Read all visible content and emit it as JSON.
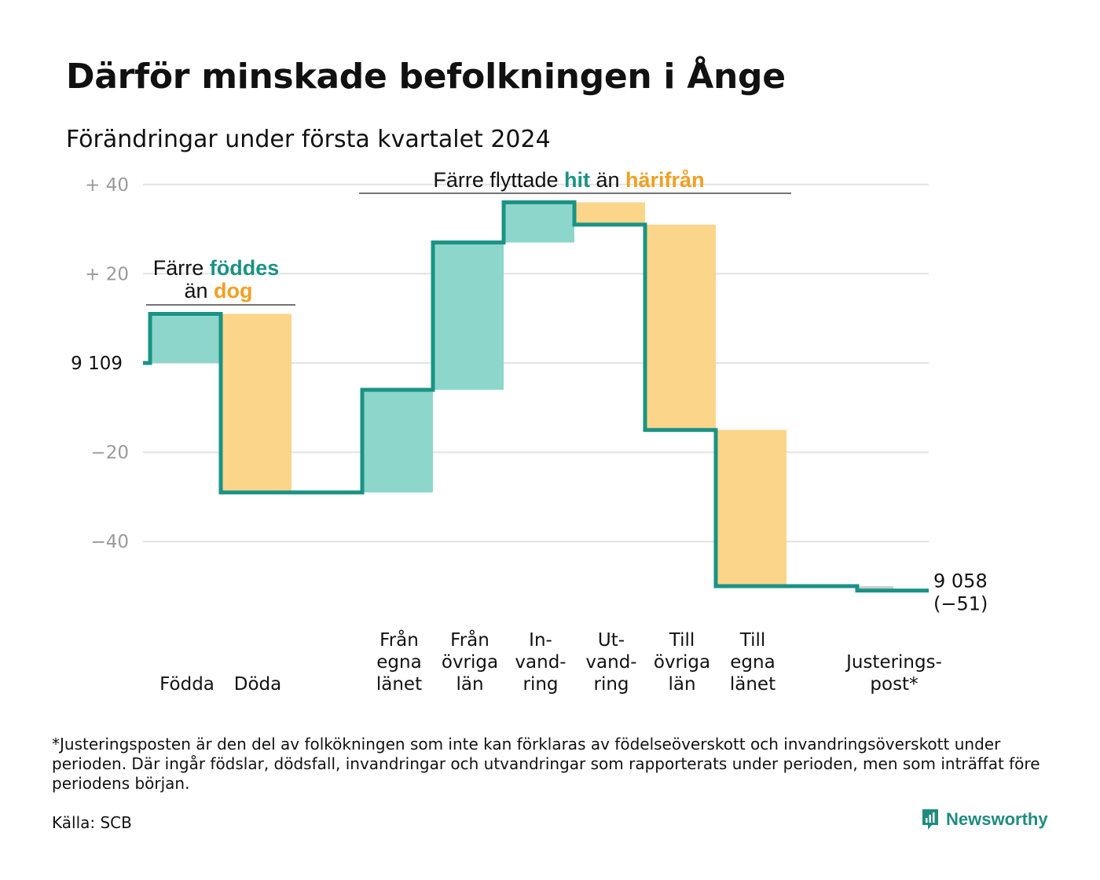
{
  "title": "Därför minskade befolkningen i Ånge",
  "subtitle": "Förändringar under första kvartalet 2024",
  "colors": {
    "increase": "#8dd6cb",
    "decrease": "#fad58a",
    "line": "#1a9384",
    "teal_text": "#1a9384",
    "orange_text": "#f0a022",
    "adjustment": "#cccccc",
    "grid": "#e2e2e2",
    "tick_text": "#9a9a9a"
  },
  "chart_data": {
    "type": "waterfall",
    "start_label": "9 109",
    "start_value": 9109,
    "y_ticks": [
      {
        "value": 40,
        "label": "+ 40"
      },
      {
        "value": 20,
        "label": "+ 20"
      },
      {
        "value": -20,
        "label": "−20"
      },
      {
        "value": -40,
        "label": "−40"
      }
    ],
    "ylim": [
      -57,
      42
    ],
    "categories": [
      {
        "label": [
          "Födda"
        ],
        "change": 11
      },
      {
        "label": [
          "Döda"
        ],
        "change": -40
      },
      {
        "label": [],
        "change": 0
      },
      {
        "label": [
          "Från",
          "egna",
          "länet"
        ],
        "change": 23
      },
      {
        "label": [
          "Från",
          "övriga",
          "län"
        ],
        "change": 33
      },
      {
        "label": [
          "In-",
          "vand-",
          "ring"
        ],
        "change": 9
      },
      {
        "label": [
          "Ut-",
          "vand-",
          "ring"
        ],
        "change": -5
      },
      {
        "label": [
          "Till",
          "övriga",
          "län"
        ],
        "change": -46
      },
      {
        "label": [
          "Till",
          "egna",
          "länet"
        ],
        "change": -35
      },
      {
        "label": [],
        "change": 0
      },
      {
        "label": [
          "Justerings-",
          "post*"
        ],
        "change": -1
      }
    ],
    "end_value_label": "9 058",
    "end_change_label": "(−51)",
    "annotations": [
      {
        "parts": [
          {
            "text": "Färre ",
            "color": "default"
          },
          {
            "text": "föddes",
            "color": "teal"
          }
        ],
        "line2": [
          {
            "text": "än ",
            "color": "default"
          },
          {
            "text": "dog",
            "color": "orange"
          }
        ]
      },
      {
        "parts": [
          {
            "text": "Färre flyttade ",
            "color": "default"
          },
          {
            "text": "hit",
            "color": "teal"
          },
          {
            "text": " än ",
            "color": "default"
          },
          {
            "text": "härifrån",
            "color": "orange"
          }
        ]
      }
    ]
  },
  "footnote": "*Justeringsposten är den del av folkökningen som inte kan förklaras av födelseöverskott och invandringsöverskott under perioden. Där ingår födslar, dödsfall, invandringar och utvandringar som rapporterats under perioden, men som inträffat före periodens början.",
  "source": "Källa: SCB",
  "brand": "Newsworthy",
  "brand_icon": "newsworthy-logo-icon"
}
